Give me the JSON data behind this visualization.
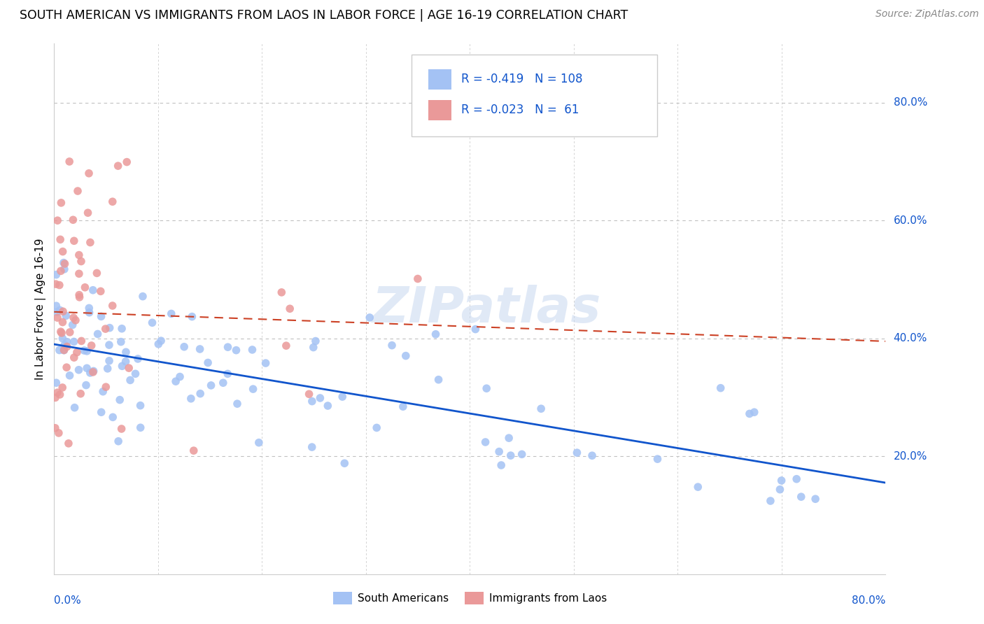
{
  "title": "SOUTH AMERICAN VS IMMIGRANTS FROM LAOS IN LABOR FORCE | AGE 16-19 CORRELATION CHART",
  "source": "Source: ZipAtlas.com",
  "ylabel": "In Labor Force | Age 16-19",
  "legend1_R": "-0.419",
  "legend1_N": "108",
  "legend2_R": "-0.023",
  "legend2_N": "61",
  "blue_color": "#a4c2f4",
  "pink_color": "#ea9999",
  "blue_line_color": "#1155cc",
  "pink_line_color": "#cc4125",
  "text_color": "#1155cc",
  "watermark": "ZIPatlas",
  "xlim": [
    0.0,
    0.8
  ],
  "ylim": [
    0.0,
    0.9
  ],
  "blue_line_x0": 0.0,
  "blue_line_y0": 0.39,
  "blue_line_x1": 0.8,
  "blue_line_y1": 0.155,
  "pink_line_x0": 0.0,
  "pink_line_y0": 0.445,
  "pink_line_x1": 0.8,
  "pink_line_y1": 0.395
}
